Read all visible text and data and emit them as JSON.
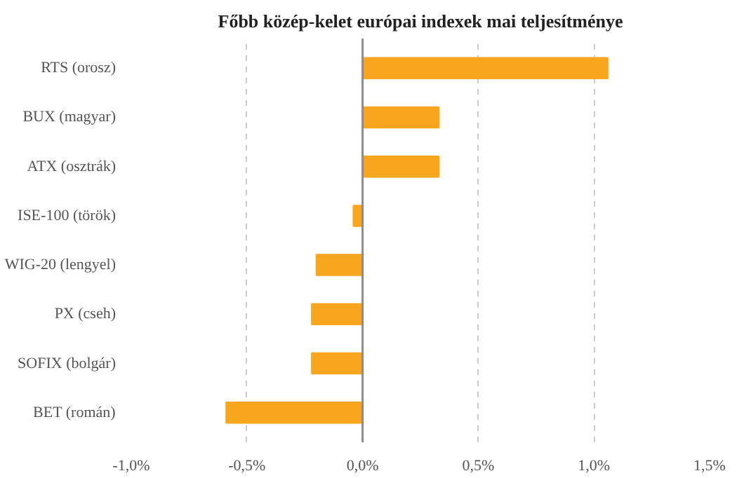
{
  "chart_data": {
    "type": "bar",
    "orientation": "horizontal",
    "title": "Főbb közép-kelet európai indexek mai teljesítménye",
    "categories": [
      "RTS (orosz)",
      "BUX (magyar)",
      "ATX (osztrák)",
      "ISE-100 (török)",
      "WIG-20 (lengyel)",
      "PX (cseh)",
      "SOFIX (bolgár)",
      "BET (román)"
    ],
    "values": [
      1.06,
      0.33,
      0.33,
      -0.04,
      -0.2,
      -0.22,
      -0.22,
      -0.59
    ],
    "color": "#f9a61f",
    "xlim": [
      -1.0,
      1.5
    ],
    "xticks": [
      {
        "value": -1.0,
        "label": "-1,0%"
      },
      {
        "value": -0.5,
        "label": "-0,5%"
      },
      {
        "value": 0,
        "label": "0,0%"
      },
      {
        "value": 0.5,
        "label": "0,5%"
      },
      {
        "value": 1.0,
        "label": "1,0%"
      },
      {
        "value": 1.5,
        "label": "1,5%"
      }
    ],
    "grid": "x",
    "ref_lines": [
      {
        "axis": "x",
        "value": 0,
        "color": "#8c8c8c"
      }
    ]
  }
}
